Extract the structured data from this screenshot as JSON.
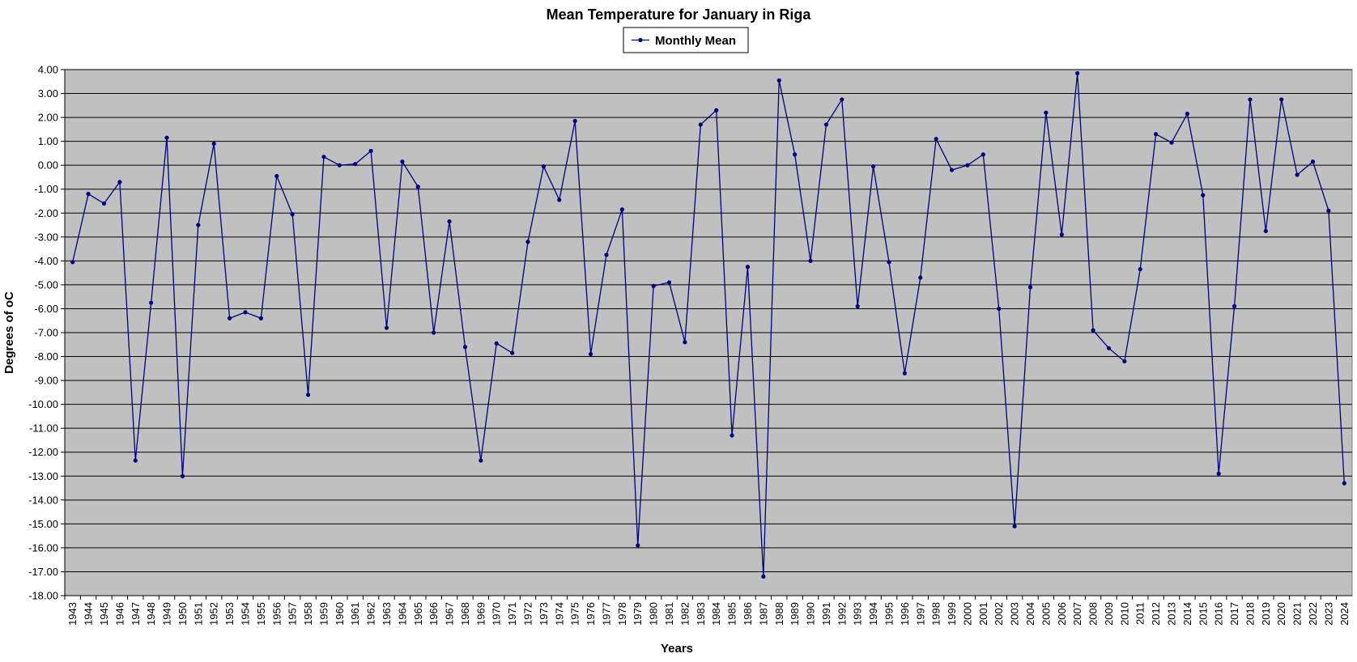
{
  "chart_data": {
    "type": "line",
    "title": "Mean Temperature for January in Riga",
    "xlabel": "Years",
    "ylabel": "Degrees of  oC",
    "ylim": [
      -18,
      4
    ],
    "y_step": 1,
    "y_tick_format": "2 decimals",
    "grid": "horizontal",
    "legend": {
      "position": "top-center",
      "entries": [
        "Monthly Mean"
      ]
    },
    "colors": {
      "series": "#000080",
      "plot_background": "#c0c0c0",
      "gridline": "#000000"
    },
    "categories": [
      "1943",
      "1944",
      "1945",
      "1946",
      "1947",
      "1948",
      "1949",
      "1950",
      "1951",
      "1952",
      "1953",
      "1954",
      "1955",
      "1956",
      "1957",
      "1958",
      "1959",
      "1960",
      "1961",
      "1962",
      "1963",
      "1964",
      "1965",
      "1966",
      "1967",
      "1968",
      "1969",
      "1970",
      "1971",
      "1972",
      "1973",
      "1974",
      "1975",
      "1976",
      "1977",
      "1978",
      "1979",
      "1980",
      "1981",
      "1982",
      "1983",
      "1984",
      "1985",
      "1986",
      "1987",
      "1988",
      "1989",
      "1990",
      "1991",
      "1992",
      "1993",
      "1994",
      "1995",
      "1996",
      "1997",
      "1998",
      "1999",
      "2000",
      "2001",
      "2002",
      "2003",
      "2004",
      "2005",
      "2006",
      "2007",
      "2008",
      "2009",
      "2010",
      "2011",
      "2012",
      "2013",
      "2014",
      "2015",
      "2016",
      "2017",
      "2018",
      "2019",
      "2020",
      "2021",
      "2022",
      "2023",
      "2024"
    ],
    "series": [
      {
        "name": "Monthly Mean",
        "values": [
          -4.05,
          -1.2,
          -1.6,
          -0.7,
          -12.35,
          -5.75,
          1.15,
          -13.0,
          -2.5,
          0.9,
          -6.4,
          -6.15,
          -6.4,
          -0.45,
          -2.05,
          -9.6,
          0.35,
          0.0,
          0.05,
          0.6,
          -6.8,
          0.15,
          -0.9,
          -7.0,
          -2.35,
          -7.6,
          -12.35,
          -7.45,
          -7.85,
          -3.2,
          -0.05,
          -1.45,
          1.85,
          -7.9,
          -3.75,
          -1.85,
          -15.9,
          -5.05,
          -4.9,
          -7.4,
          1.7,
          2.3,
          -11.3,
          -4.25,
          -17.2,
          3.55,
          0.45,
          -4.0,
          1.7,
          2.75,
          -5.9,
          -0.05,
          -4.05,
          -8.7,
          -4.7,
          1.1,
          -0.2,
          0.0,
          0.45,
          -6.0,
          -15.1,
          -5.1,
          2.2,
          -2.9,
          3.85,
          -6.9,
          -7.65,
          -8.2,
          -4.35,
          1.3,
          0.95,
          2.15,
          -1.25,
          -12.9,
          -5.9,
          2.75,
          -2.75,
          2.75,
          -0.4,
          0.15,
          -1.9,
          -13.3
        ]
      }
    ]
  }
}
